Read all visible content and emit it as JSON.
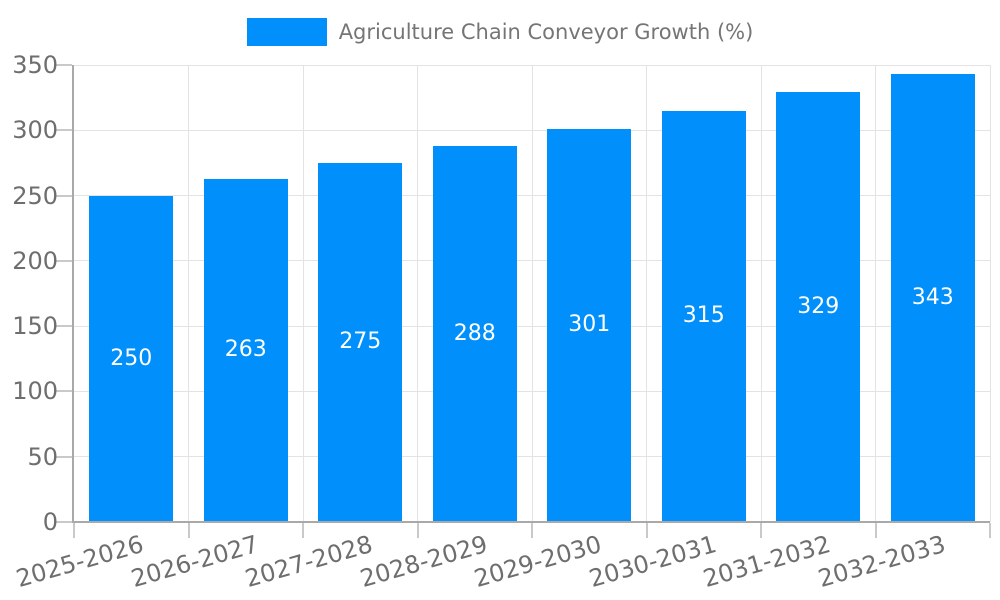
{
  "legend": {
    "label": "Agriculture Chain Conveyor Growth (%)",
    "swatch_color": "#008FFB"
  },
  "chart_data": {
    "type": "bar",
    "title": "Agriculture Chain Conveyor Growth (%)",
    "categories": [
      "2025-2026",
      "2026-2027",
      "2027-2028",
      "2028-2029",
      "2029-2030",
      "2030-2031",
      "2031-2032",
      "2032-2033"
    ],
    "values": [
      250,
      263,
      275,
      288,
      301,
      315,
      329,
      343
    ],
    "xlabel": "",
    "ylabel": "",
    "ylim": [
      0,
      350
    ],
    "yticks": [
      0,
      50,
      100,
      150,
      200,
      250,
      300,
      350
    ],
    "grid": true,
    "legend_position": "top",
    "bar_color": "#008FFB",
    "value_label_color": "#FFFFFF",
    "value_label_position": "inside-center"
  },
  "colors": {
    "background": "#FFFFFF",
    "axis_line": "#A9A9A9",
    "gridline": "#E3E3E3",
    "tick": "#C9C9C9",
    "axis_label": "#6E6E6E",
    "legend_text": "#757575"
  }
}
